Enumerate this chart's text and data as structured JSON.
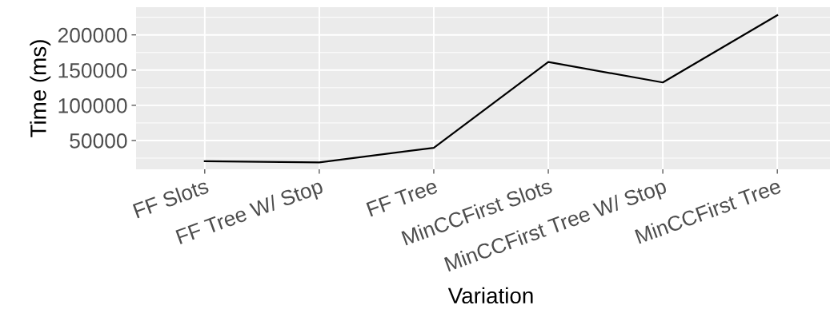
{
  "chart_data": {
    "type": "line",
    "xlabel": "Variation",
    "ylabel": "Time (ms)",
    "categories": [
      "FF Slots",
      "FF Tree W/ Stop",
      "FF Tree",
      "MinCCFirst Slots",
      "MinCCFirst Tree W/ Stop",
      "MinCCFirst Tree"
    ],
    "series": [
      {
        "color": "#000000",
        "values": [
          20500,
          19000,
          39500,
          161500,
          132500,
          228000
        ]
      }
    ],
    "ylim": [
      9100,
      239400
    ],
    "yticks": [
      50000,
      100000,
      150000,
      200000
    ],
    "grid": true,
    "marker": "none",
    "line_style": "solid"
  }
}
